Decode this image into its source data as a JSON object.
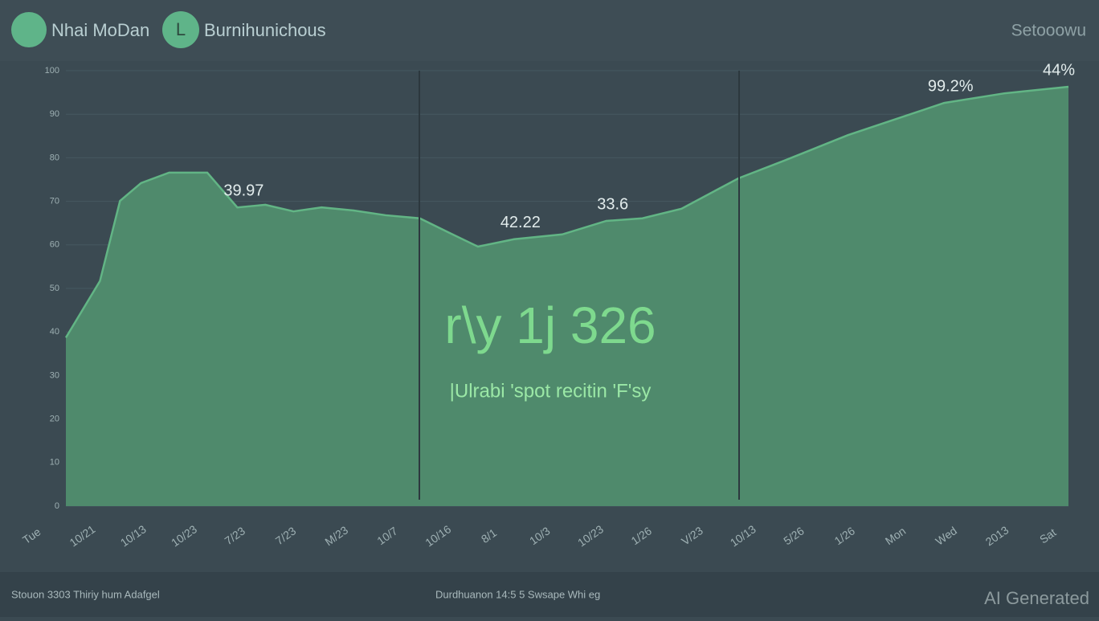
{
  "header": {
    "brand": "Nhai MoDan",
    "badge": "L",
    "product": "Burnihunichous",
    "settings": "Setooowu"
  },
  "chart_data": {
    "type": "area",
    "color": "#4f8a6c",
    "line_color": "#62b585",
    "x": [
      0,
      3.4,
      5.4,
      7.5,
      10.3,
      14.1,
      17.1,
      19.9,
      22.7,
      25.5,
      28.7,
      31.9,
      35.3,
      38.3,
      41.1,
      44.7,
      49.5,
      53.9,
      57.5,
      61.4,
      67.1,
      71.6,
      78,
      82.4,
      87.6,
      93.6,
      100
    ],
    "values": [
      38.7,
      51.7,
      70.1,
      74.2,
      76.6,
      76.6,
      68.6,
      69.2,
      67.7,
      68.6,
      67.9,
      66.8,
      66.1,
      62.7,
      59.6,
      61.3,
      62.4,
      65.5,
      66.1,
      68.3,
      75.3,
      79.3,
      85.2,
      88.6,
      92.6,
      94.8,
      96.3
    ],
    "xlim": [
      0,
      100
    ],
    "ylim": [
      0,
      100
    ],
    "yticks": [
      0,
      10,
      20,
      30,
      40,
      50,
      60,
      70,
      80,
      90,
      100
    ],
    "grid": true,
    "x_labels": [
      "Tue",
      "10/21",
      "10/13",
      "10/23",
      "7/23",
      "7/23",
      "M/23",
      "10/7",
      "10/16",
      "8/1",
      "10/3",
      "10/23",
      "1/26",
      "V/23",
      "10/13",
      "5/26",
      "1/26",
      "Mon",
      "Wed",
      "2013",
      "Sat"
    ],
    "annotations": [
      {
        "x": 17.1,
        "label": "39.97"
      },
      {
        "x": 44.7,
        "label": "42.22"
      },
      {
        "x": 53.9,
        "label": "33.6"
      },
      {
        "x": 87.6,
        "label": "99.2%"
      },
      {
        "x": 100,
        "label": "44%"
      }
    ],
    "big_value": "r\\y 1j 326",
    "big_caption": "|Ulrabi 'spot recitin 'F'sy"
  },
  "footer": {
    "left": "Stouon 3303  Thiriy hum Adafgel",
    "center": "Durdhuanon 14:5  5  Swsape Whi eg",
    "watermark": "AI Generated"
  }
}
